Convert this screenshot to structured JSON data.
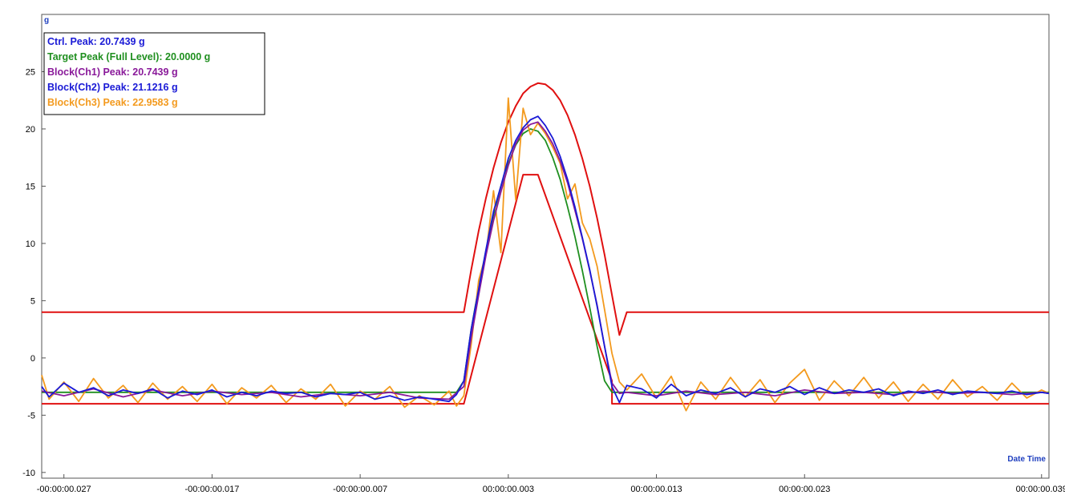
{
  "chart_data": {
    "type": "line",
    "xlabel": "Date Time",
    "ylabel": "g",
    "xlim": [
      -0.0285,
      0.0395
    ],
    "ylim": [
      -10.5,
      30
    ],
    "grid": false,
    "legend_placement": "top-left",
    "x_ticks": [
      {
        "value": -0.027,
        "label": "-00:00:00.027"
      },
      {
        "value": -0.017,
        "label": "-00:00:00.017"
      },
      {
        "value": -0.007,
        "label": "-00:00:00.007"
      },
      {
        "value": 0.003,
        "label": "00:00:00.003"
      },
      {
        "value": 0.013,
        "label": "00:00:00.013"
      },
      {
        "value": 0.023,
        "label": "00:00:00.023"
      },
      {
        "value": 0.039,
        "label": "00:00:00.039"
      }
    ],
    "y_ticks": [
      {
        "value": 25,
        "label": "25"
      },
      {
        "value": 20,
        "label": "20"
      },
      {
        "value": 15,
        "label": "15"
      },
      {
        "value": 10,
        "label": "10"
      },
      {
        "value": 5,
        "label": "5"
      },
      {
        "value": 0,
        "label": "0"
      },
      {
        "value": -5,
        "label": "-5"
      },
      {
        "value": -10,
        "label": "-10"
      }
    ],
    "legend": [
      {
        "text": "Ctrl. Peak: 20.7439 g",
        "color": "#1a1ad6"
      },
      {
        "text": "Target Peak (Full Level): 20.0000 g",
        "color": "#1f8f1f"
      },
      {
        "text": "Block(Ch1) Peak: 20.7439 g",
        "color": "#8a1a9a"
      },
      {
        "text": "Block(Ch2) Peak: 21.1216 g",
        "color": "#1a1ad6"
      },
      {
        "text": "Block(Ch3) Peak: 22.9583 g",
        "color": "#f39a1e"
      }
    ],
    "series": [
      {
        "color": "#e01010",
        "role": "upper-tolerance",
        "x": [
          -0.0285,
          0.0,
          0.0005,
          0.001,
          0.0015,
          0.002,
          0.0025,
          0.003,
          0.0035,
          0.004,
          0.0045,
          0.005,
          0.0055,
          0.006,
          0.0065,
          0.007,
          0.0075,
          0.008,
          0.0085,
          0.009,
          0.0095,
          0.01,
          0.0105,
          0.011,
          0.0395
        ],
        "y": [
          4,
          4,
          7.7,
          11.1,
          14.0,
          16.6,
          18.8,
          20.6,
          22.0,
          23.1,
          23.7,
          24.0,
          23.9,
          23.4,
          22.5,
          21.2,
          19.5,
          17.4,
          15.0,
          12.2,
          9.0,
          5.5,
          2.0,
          4.0,
          4
        ]
      },
      {
        "color": "#e01010",
        "role": "lower-tolerance",
        "x": [
          -0.0285,
          0.0,
          0.004,
          0.005,
          0.01,
          0.01,
          0.0395
        ],
        "y": [
          -4,
          -4,
          16,
          16,
          -2,
          -4,
          -4
        ]
      },
      {
        "color": "#1f8f1f",
        "role": "target",
        "x": [
          -0.0285,
          -0.0005,
          0.0,
          0.0005,
          0.001,
          0.0015,
          0.002,
          0.0025,
          0.003,
          0.0035,
          0.004,
          0.0045,
          0.005,
          0.0055,
          0.006,
          0.0065,
          0.007,
          0.0075,
          0.008,
          0.0085,
          0.009,
          0.0095,
          0.01,
          0.0105,
          0.011,
          0.0395
        ],
        "y": [
          -3.0,
          -3.0,
          -2.0,
          2.5,
          6.2,
          9.4,
          12.5,
          15.0,
          17.0,
          18.6,
          19.6,
          20.0,
          19.8,
          19.0,
          17.5,
          15.6,
          13.2,
          10.6,
          7.6,
          4.4,
          1.0,
          -2.0,
          -3.0,
          -3.0,
          -3.0,
          -3.0
        ]
      },
      {
        "color": "#f39a1e",
        "role": "Block(Ch3)",
        "x": [
          -0.0285,
          -0.028,
          -0.027,
          -0.026,
          -0.025,
          -0.024,
          -0.023,
          -0.022,
          -0.021,
          -0.02,
          -0.019,
          -0.018,
          -0.017,
          -0.016,
          -0.015,
          -0.014,
          -0.013,
          -0.012,
          -0.011,
          -0.01,
          -0.009,
          -0.008,
          -0.007,
          -0.006,
          -0.005,
          -0.004,
          -0.003,
          -0.002,
          -0.001,
          -0.0005,
          0.0,
          0.0005,
          0.001,
          0.0015,
          0.002,
          0.0025,
          0.003,
          0.0035,
          0.004,
          0.0045,
          0.005,
          0.0055,
          0.006,
          0.0065,
          0.007,
          0.0075,
          0.008,
          0.0085,
          0.009,
          0.0095,
          0.01,
          0.0105,
          0.011,
          0.012,
          0.013,
          0.014,
          0.015,
          0.016,
          0.017,
          0.018,
          0.019,
          0.02,
          0.021,
          0.022,
          0.023,
          0.024,
          0.025,
          0.026,
          0.027,
          0.028,
          0.029,
          0.03,
          0.031,
          0.032,
          0.033,
          0.034,
          0.035,
          0.036,
          0.037,
          0.038,
          0.039,
          0.0395
        ],
        "y": [
          -1.5,
          -3.6,
          -2.1,
          -3.8,
          -1.8,
          -3.5,
          -2.4,
          -3.9,
          -2.2,
          -3.6,
          -2.5,
          -3.8,
          -2.3,
          -4.0,
          -2.6,
          -3.5,
          -2.4,
          -3.9,
          -2.7,
          -3.6,
          -2.3,
          -4.2,
          -2.9,
          -3.6,
          -2.5,
          -4.3,
          -3.3,
          -4.1,
          -2.9,
          -4.2,
          -3.3,
          1.2,
          6.8,
          9.1,
          14.6,
          9.2,
          22.7,
          13.8,
          21.8,
          19.5,
          20.5,
          19.6,
          18.4,
          17.0,
          13.9,
          15.2,
          11.8,
          10.4,
          8.0,
          4.2,
          0.4,
          -2.1,
          -2.8,
          -1.4,
          -3.5,
          -1.6,
          -4.6,
          -2.1,
          -3.6,
          -1.7,
          -3.4,
          -1.9,
          -3.9,
          -2.2,
          -1.0,
          -3.7,
          -2.0,
          -3.3,
          -1.7,
          -3.5,
          -2.1,
          -3.8,
          -2.3,
          -3.6,
          -1.9,
          -3.4,
          -2.5,
          -3.7,
          -2.2,
          -3.5,
          -2.8,
          -3.1
        ]
      },
      {
        "color": "#8a1a9a",
        "role": "Block(Ch1)",
        "x": [
          -0.0285,
          -0.027,
          -0.025,
          -0.023,
          -0.021,
          -0.019,
          -0.017,
          -0.015,
          -0.013,
          -0.011,
          -0.009,
          -0.007,
          -0.005,
          -0.003,
          -0.001,
          0.0,
          0.0005,
          0.001,
          0.0015,
          0.002,
          0.0025,
          0.003,
          0.0035,
          0.004,
          0.0045,
          0.005,
          0.0055,
          0.006,
          0.0065,
          0.007,
          0.0075,
          0.008,
          0.0085,
          0.009,
          0.0095,
          0.01,
          0.0105,
          0.011,
          0.013,
          0.015,
          0.017,
          0.019,
          0.021,
          0.023,
          0.025,
          0.027,
          0.029,
          0.031,
          0.033,
          0.035,
          0.037,
          0.039,
          0.0395
        ],
        "y": [
          -2.9,
          -3.3,
          -2.7,
          -3.4,
          -2.8,
          -3.3,
          -2.9,
          -3.2,
          -3.0,
          -3.4,
          -3.1,
          -3.3,
          -3.0,
          -3.5,
          -3.6,
          -2.5,
          1.8,
          5.5,
          9.0,
          12.0,
          14.5,
          16.8,
          18.7,
          19.9,
          20.4,
          20.6,
          19.8,
          18.7,
          17.2,
          15.3,
          12.9,
          10.4,
          7.6,
          4.6,
          1.0,
          -2.2,
          -3.1,
          -3.0,
          -3.3,
          -2.9,
          -3.2,
          -3.0,
          -3.3,
          -2.8,
          -3.1,
          -3.0,
          -3.2,
          -2.9,
          -3.1,
          -3.0,
          -3.2,
          -3.0,
          -3.1
        ]
      },
      {
        "color": "#1a1ad6",
        "role": "Ctrl / Block(Ch2)",
        "x": [
          -0.0285,
          -0.028,
          -0.027,
          -0.026,
          -0.025,
          -0.024,
          -0.023,
          -0.022,
          -0.021,
          -0.02,
          -0.019,
          -0.018,
          -0.017,
          -0.016,
          -0.015,
          -0.014,
          -0.013,
          -0.012,
          -0.011,
          -0.01,
          -0.009,
          -0.008,
          -0.007,
          -0.006,
          -0.005,
          -0.004,
          -0.003,
          -0.002,
          -0.001,
          -0.0005,
          0.0,
          0.0005,
          0.001,
          0.0015,
          0.002,
          0.0025,
          0.003,
          0.0035,
          0.004,
          0.0045,
          0.005,
          0.0055,
          0.006,
          0.0065,
          0.007,
          0.0075,
          0.008,
          0.0085,
          0.009,
          0.0095,
          0.01,
          0.0105,
          0.011,
          0.012,
          0.013,
          0.014,
          0.015,
          0.016,
          0.017,
          0.018,
          0.019,
          0.02,
          0.021,
          0.022,
          0.023,
          0.024,
          0.025,
          0.026,
          0.027,
          0.028,
          0.029,
          0.03,
          0.031,
          0.032,
          0.033,
          0.034,
          0.035,
          0.036,
          0.037,
          0.038,
          0.039,
          0.0395
        ],
        "y": [
          -2.5,
          -3.4,
          -2.2,
          -3.0,
          -2.6,
          -3.3,
          -2.8,
          -3.1,
          -2.7,
          -3.5,
          -2.9,
          -3.2,
          -2.8,
          -3.4,
          -3.0,
          -3.3,
          -2.9,
          -3.1,
          -3.0,
          -3.4,
          -3.1,
          -3.2,
          -3.0,
          -3.6,
          -3.3,
          -3.7,
          -3.4,
          -3.6,
          -3.8,
          -3.2,
          -2.0,
          2.5,
          6.0,
          9.5,
          12.8,
          15.0,
          17.4,
          19.0,
          20.1,
          20.8,
          21.1,
          20.3,
          19.2,
          17.6,
          15.6,
          13.2,
          10.5,
          7.7,
          4.5,
          1.0,
          -2.5,
          -3.9,
          -2.4,
          -2.7,
          -3.5,
          -2.3,
          -3.3,
          -2.8,
          -3.1,
          -2.6,
          -3.4,
          -2.7,
          -3.0,
          -2.5,
          -3.2,
          -2.6,
          -3.1,
          -2.8,
          -3.0,
          -2.7,
          -3.3,
          -2.9,
          -3.1,
          -2.8,
          -3.2,
          -2.9,
          -3.0,
          -3.1,
          -2.9,
          -3.2,
          -3.0,
          -3.1
        ]
      }
    ]
  }
}
